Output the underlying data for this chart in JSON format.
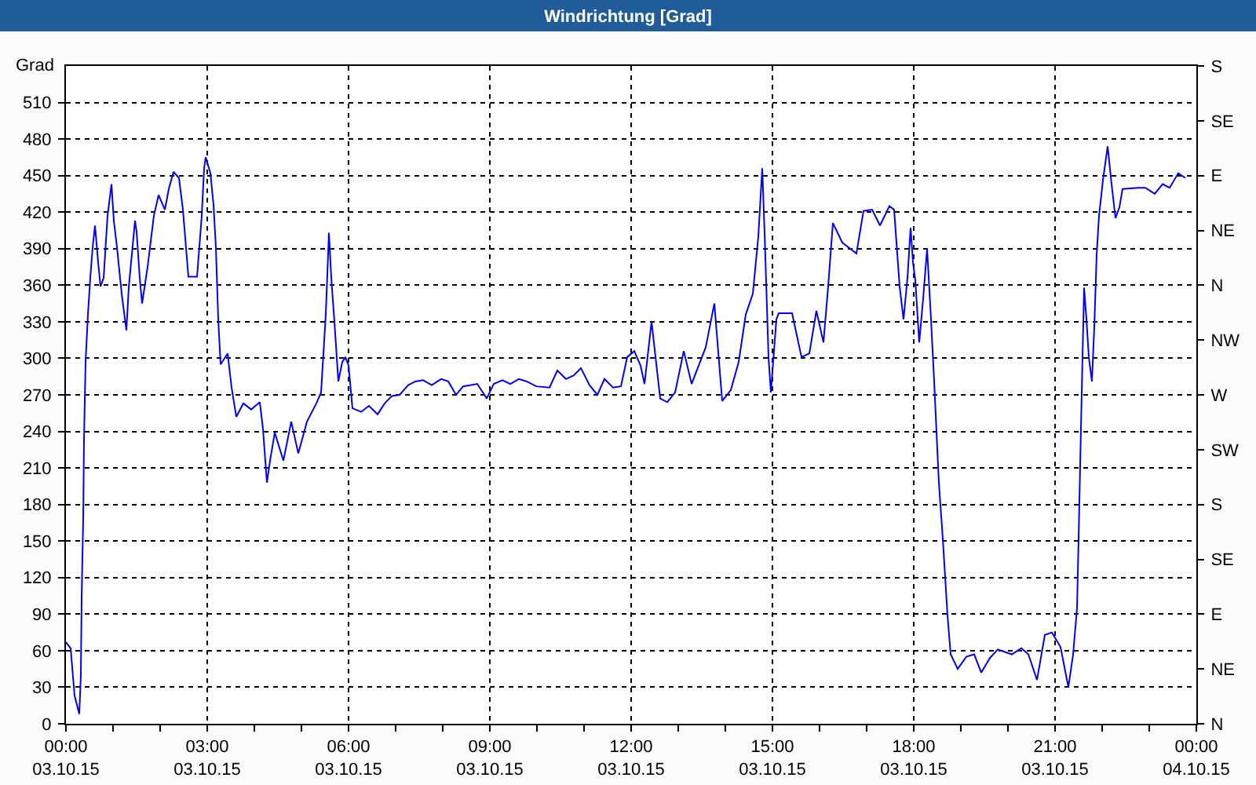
{
  "chart_data": {
    "type": "line",
    "title": "Windrichtung [Grad]",
    "ylabel": "Grad",
    "color": "#0000ff",
    "grid": true,
    "x": [
      "--10-03T00:00",
      "--10-03T00:06",
      "--10-03T00:11",
      "--10-03T00:17",
      "--10-03T00:19",
      "--10-03T00:20",
      "--10-03T00:22",
      "--10-03T00:23",
      "--10-03T00:25",
      "--10-03T00:28",
      "--10-03T00:31",
      "--10-03T00:34",
      "--10-03T00:37",
      "--10-03T00:41",
      "--10-03T00:44",
      "--10-03T00:48",
      "--10-03T00:53",
      "--10-03T00:58",
      "--10-03T01:01",
      "--10-03T01:05",
      "--10-03T01:11",
      "--10-03T01:17",
      "--10-03T01:20",
      "--10-03T01:28",
      "--10-03T01:30",
      "--10-03T01:34",
      "--10-03T01:37",
      "--10-03T01:44",
      "--10-03T01:52",
      "--10-03T01:58",
      "--10-03T02:06",
      "--10-03T02:11",
      "--10-03T02:17",
      "--10-03T02:24",
      "--10-03T02:29",
      "--10-03T02:36",
      "--10-03T02:47",
      "--10-03T02:53",
      "--10-03T02:56",
      "--10-03T02:58",
      "--10-03T03:04",
      "--10-03T03:08",
      "--10-03T03:11",
      "--10-03T03:14",
      "--10-03T03:17",
      "--10-03T03:26",
      "--10-03T03:31",
      "--10-03T03:37",
      "--10-03T03:46",
      "--10-03T03:56",
      "--10-03T04:07",
      "--10-03T04:11",
      "--10-03T04:16",
      "--10-03T04:20",
      "--10-03T04:26",
      "--10-03T04:37",
      "--10-03T04:47",
      "--10-03T04:56",
      "--10-03T05:07",
      "--10-03T05:19",
      "--10-03T05:25",
      "--10-03T05:31",
      "--10-03T05:35",
      "--10-03T05:38",
      "--10-03T05:42",
      "--10-03T05:47",
      "--10-03T05:52",
      "--10-03T05:56",
      "--10-03T06:00",
      "--10-03T06:05",
      "--10-03T06:16",
      "--10-03T06:26",
      "--10-03T06:37",
      "--10-03T06:46",
      "--10-03T06:55",
      "--10-03T07:05",
      "--10-03T07:16",
      "--10-03T07:25",
      "--10-03T07:35",
      "--10-03T07:46",
      "--10-03T07:58",
      "--10-03T08:07",
      "--10-03T08:17",
      "--10-03T08:26",
      "--10-03T08:36",
      "--10-03T08:44",
      "--10-03T08:56",
      "--10-03T09:05",
      "--10-03T09:16",
      "--10-03T09:26",
      "--10-03T09:37",
      "--10-03T09:47",
      "--10-03T09:59",
      "--10-03T10:16",
      "--10-03T10:26",
      "--10-03T10:37",
      "--10-03T10:47",
      "--10-03T10:56",
      "--10-03T11:07",
      "--10-03T11:17",
      "--10-03T11:26",
      "--10-03T11:37",
      "--10-03T11:47",
      "--10-03T11:55",
      "--10-03T12:04",
      "--10-03T12:12",
      "--10-03T12:17",
      "--10-03T12:26",
      "--10-03T12:37",
      "--10-03T12:46",
      "--10-03T12:56",
      "--10-03T13:07",
      "--10-03T13:17",
      "--10-03T13:35",
      "--10-03T13:46",
      "--10-03T13:56",
      "--10-03T14:07",
      "--10-03T14:17",
      "--10-03T14:26",
      "--10-03T14:35",
      "--10-03T14:42",
      "--10-03T14:47",
      "--10-03T14:50",
      "--10-03T14:55",
      "--10-03T14:58",
      "--10-03T15:05",
      "--10-03T15:08",
      "--10-03T15:25",
      "--10-03T15:37",
      "--10-03T15:47",
      "--10-03T15:56",
      "--10-03T16:05",
      "--10-03T16:11",
      "--10-03T16:17",
      "--10-03T16:29",
      "--10-03T16:47",
      "--10-03T16:56",
      "--10-03T17:07",
      "--10-03T17:17",
      "--10-03T17:29",
      "--10-03T17:35",
      "--10-03T17:42",
      "--10-03T17:47",
      "--10-03T17:52",
      "--10-03T17:56",
      "--10-03T17:59",
      "--10-03T18:02",
      "--10-03T18:07",
      "--10-03T18:12",
      "--10-03T18:17",
      "--10-03T18:22",
      "--10-03T18:26",
      "--10-03T18:32",
      "--10-03T18:37",
      "--10-03T18:43",
      "--10-03T18:47",
      "--10-03T18:56",
      "--10-03T19:07",
      "--10-03T19:17",
      "--10-03T19:26",
      "--10-03T19:37",
      "--10-03T19:47",
      "--10-03T19:56",
      "--10-03T20:05",
      "--10-03T20:17",
      "--10-03T20:26",
      "--10-03T20:37",
      "--10-03T20:47",
      "--10-03T20:56",
      "--10-03T21:07",
      "--10-03T21:17",
      "--10-03T21:23",
      "--10-03T21:28",
      "--10-03T21:30",
      "--10-03T21:34",
      "--10-03T21:37",
      "--10-03T21:40",
      "--10-03T21:43",
      "--10-03T21:47",
      "--10-03T21:50",
      "--10-03T21:53",
      "--10-03T21:56",
      "--10-03T22:01",
      "--10-03T22:07",
      "--10-03T22:12",
      "--10-03T22:17",
      "--10-03T22:22",
      "--10-03T22:26",
      "--10-03T22:46",
      "--10-03T22:55",
      "--10-03T23:07",
      "--10-03T23:17",
      "--10-03T23:26",
      "--10-03T23:37",
      "--10-03T23:46"
    ],
    "values": [
      67,
      62,
      23,
      8,
      40,
      104,
      169,
      233,
      297,
      336,
      366,
      391,
      409,
      379,
      359,
      366,
      417,
      443,
      413,
      391,
      353,
      323,
      358,
      413,
      404,
      366,
      345,
      375,
      417,
      434,
      422,
      439,
      453,
      448,
      422,
      367,
      367,
      417,
      456,
      465,
      452,
      426,
      391,
      332,
      295,
      304,
      276,
      252,
      263,
      258,
      264,
      242,
      198,
      216,
      239,
      216,
      248,
      222,
      248,
      263,
      272,
      336,
      403,
      366,
      330,
      281,
      297,
      301,
      294,
      259,
      256,
      261,
      254,
      263,
      269,
      270,
      278,
      281,
      282,
      278,
      283,
      281,
      270,
      277,
      278,
      279,
      267,
      279,
      282,
      279,
      283,
      281,
      277,
      276,
      290,
      283,
      286,
      292,
      278,
      270,
      283,
      276,
      277,
      301,
      306,
      294,
      279,
      330,
      267,
      264,
      272,
      306,
      279,
      309,
      345,
      265,
      274,
      297,
      336,
      353,
      400,
      456,
      403,
      301,
      272,
      332,
      337,
      337,
      301,
      304,
      339,
      313,
      359,
      411,
      395,
      386,
      421,
      422,
      409,
      425,
      422,
      359,
      332,
      366,
      407,
      379,
      364,
      313,
      349,
      390,
      332,
      281,
      198,
      152,
      89,
      57,
      45,
      55,
      57,
      42,
      54,
      61,
      59,
      57,
      62,
      57,
      36,
      73,
      75,
      63,
      30,
      57,
      95,
      152,
      272,
      358,
      332,
      301,
      281,
      326,
      385,
      417,
      446,
      474,
      443,
      415,
      424,
      439,
      440,
      440,
      435,
      443,
      440,
      452,
      448
    ],
    "xlim": [
      "--10-03T00:00",
      "--10-04T00:00"
    ],
    "xticks": [
      {
        "value": "--10-03T00:00",
        "label": "00:00\n03.10.15"
      },
      {
        "value": "--10-03T01:00",
        "label": null
      },
      {
        "value": "--10-03T02:00",
        "label": null
      },
      {
        "value": "--10-03T03:00",
        "label": "03:00\n03.10.15"
      },
      {
        "value": "--10-03T04:00",
        "label": null
      },
      {
        "value": "--10-03T05:00",
        "label": null
      },
      {
        "value": "--10-03T06:00",
        "label": "06:00\n03.10.15"
      },
      {
        "value": "--10-03T07:00",
        "label": null
      },
      {
        "value": "--10-03T08:00",
        "label": null
      },
      {
        "value": "--10-03T09:00",
        "label": "09:00\n03.10.15"
      },
      {
        "value": "--10-03T10:00",
        "label": null
      },
      {
        "value": "--10-03T11:00",
        "label": null
      },
      {
        "value": "--10-03T12:00",
        "label": "12:00\n03.10.15"
      },
      {
        "value": "--10-03T13:00",
        "label": null
      },
      {
        "value": "--10-03T14:00",
        "label": null
      },
      {
        "value": "--10-03T15:00",
        "label": "15:00\n03.10.15"
      },
      {
        "value": "--10-03T16:00",
        "label": null
      },
      {
        "value": "--10-03T17:00",
        "label": null
      },
      {
        "value": "--10-03T18:00",
        "label": "18:00\n03.10.15"
      },
      {
        "value": "--10-03T19:00",
        "label": null
      },
      {
        "value": "--10-03T20:00",
        "label": null
      },
      {
        "value": "--10-03T21:00",
        "label": "21:00\n03.10.15"
      },
      {
        "value": "--10-03T22:00",
        "label": null
      },
      {
        "value": "--10-03T23:00",
        "label": null
      },
      {
        "value": "--10-04T00:00",
        "label": "00:00\n04.10.15"
      }
    ],
    "ylim": [
      0,
      540
    ],
    "yticks": [
      0,
      30,
      60,
      90,
      120,
      150,
      180,
      210,
      240,
      270,
      300,
      330,
      360,
      390,
      420,
      450,
      480,
      510
    ],
    "y2_categories": [
      "S",
      "SE",
      "E",
      "NE",
      "N",
      "NW",
      "W",
      "SW",
      "S",
      "SE",
      "E",
      "NE",
      "N"
    ]
  }
}
